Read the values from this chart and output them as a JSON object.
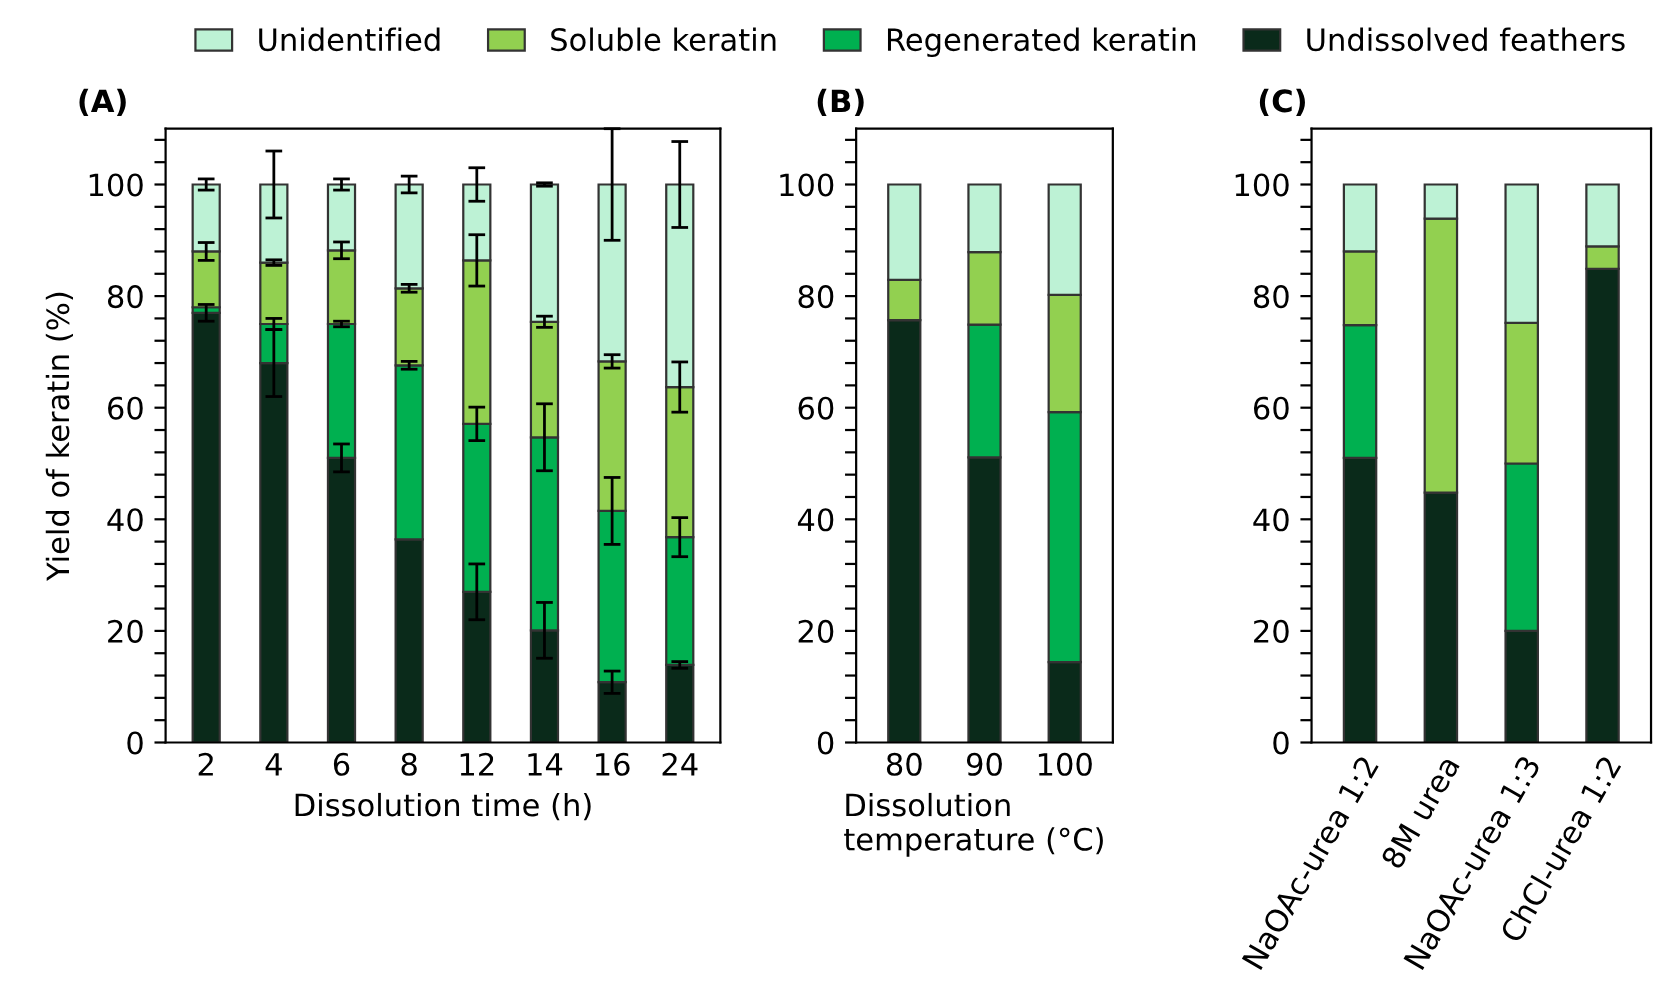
{
  "chart_data": [
    {
      "type": "bar",
      "stacked": true,
      "title": "(A)",
      "xlabel": "Dissolution time (h)",
      "ylabel": "Yield of keratin (%)",
      "legend": "top",
      "categories": [
        "2",
        "4",
        "6",
        "8",
        "12",
        "14",
        "16",
        "24"
      ],
      "ylim": [
        0,
        110
      ],
      "yticks": [
        0,
        {
          "value": 4,
          "label": null
        },
        {
          "value": 8,
          "label": null
        },
        {
          "value": 12,
          "label": null
        },
        {
          "value": 16,
          "label": null
        },
        20,
        {
          "value": 24,
          "label": null
        },
        {
          "value": 28,
          "label": null
        },
        {
          "value": 32,
          "label": null
        },
        {
          "value": 36,
          "label": null
        },
        40,
        {
          "value": 44,
          "label": null
        },
        {
          "value": 48,
          "label": null
        },
        {
          "value": 52,
          "label": null
        },
        {
          "value": 56,
          "label": null
        },
        60,
        {
          "value": 64,
          "label": null
        },
        {
          "value": 68,
          "label": null
        },
        {
          "value": 72,
          "label": null
        },
        {
          "value": 76,
          "label": null
        },
        80,
        {
          "value": 84,
          "label": null
        },
        {
          "value": 88,
          "label": null
        },
        {
          "value": 92,
          "label": null
        },
        {
          "value": 96,
          "label": null
        },
        100,
        {
          "value": 104,
          "label": null
        },
        {
          "value": 108,
          "label": null
        }
      ],
      "series": [
        {
          "name": "Undissolved feathers",
          "color": "#0a2a1a",
          "values": [
            77,
            68,
            51,
            36.4,
            27,
            20.1,
            10.8,
            13.9
          ],
          "errors": [
            1.5,
            6,
            2.5,
            null,
            5,
            5,
            2,
            0.6
          ]
        },
        {
          "name": "Regenerated keratin",
          "color": "#00b050",
          "values": [
            1,
            7,
            24,
            31.2,
            30.1,
            34.6,
            30.7,
            22.9
          ],
          "errors": [
            null,
            1,
            0.5,
            0.7,
            3,
            6,
            6,
            3.5
          ]
        },
        {
          "name": "Soluble keratin",
          "color": "#92d050",
          "values": [
            10,
            11,
            13.2,
            13.8,
            29.3,
            20.7,
            26.8,
            26.9
          ],
          "errors": [
            1.6,
            0.5,
            1.5,
            0.7,
            4.6,
            1,
            1.2,
            4.5
          ]
        },
        {
          "name": "Unidentified",
          "color": "#bdf2d5",
          "values": [
            12,
            14,
            11.8,
            18.6,
            13.6,
            24.6,
            31.7,
            36.3
          ],
          "errors": [
            1,
            6,
            1,
            1.5,
            3,
            0.3,
            10,
            7.7
          ]
        }
      ]
    },
    {
      "type": "bar",
      "stacked": true,
      "title": "(B)",
      "xlabel": "Dissolution\ntemperature (°C)",
      "categories": [
        "80",
        "90",
        "100"
      ],
      "ylim": [
        0,
        110
      ],
      "yticks": [
        0,
        {
          "value": 4,
          "label": null
        },
        {
          "value": 8,
          "label": null
        },
        {
          "value": 12,
          "label": null
        },
        {
          "value": 16,
          "label": null
        },
        20,
        {
          "value": 24,
          "label": null
        },
        {
          "value": 28,
          "label": null
        },
        {
          "value": 32,
          "label": null
        },
        {
          "value": 36,
          "label": null
        },
        40,
        {
          "value": 44,
          "label": null
        },
        {
          "value": 48,
          "label": null
        },
        {
          "value": 52,
          "label": null
        },
        {
          "value": 56,
          "label": null
        },
        60,
        {
          "value": 64,
          "label": null
        },
        {
          "value": 68,
          "label": null
        },
        {
          "value": 72,
          "label": null
        },
        {
          "value": 76,
          "label": null
        },
        80,
        {
          "value": 84,
          "label": null
        },
        {
          "value": 88,
          "label": null
        },
        {
          "value": 92,
          "label": null
        },
        {
          "value": 96,
          "label": null
        },
        100,
        {
          "value": 104,
          "label": null
        },
        {
          "value": 108,
          "label": null
        }
      ],
      "series": [
        {
          "color": "#0a2a1a",
          "values": [
            75.7,
            51.1,
            14.4
          ]
        },
        {
          "color": "#00b050",
          "values": [
            0,
            23.8,
            44.8
          ]
        },
        {
          "color": "#92d050",
          "values": [
            7.2,
            13,
            21
          ]
        },
        {
          "color": "#bdf2d5",
          "values": [
            17.1,
            12.1,
            19.8
          ]
        }
      ]
    },
    {
      "type": "bar",
      "stacked": true,
      "title": "(C)",
      "categories": [
        "NaOAc-urea 1:2",
        "8M urea",
        "NaOAc-urea 1:3",
        "ChCl-urea 1:2"
      ],
      "ylim": [
        0,
        110
      ],
      "yticks": [
        0,
        {
          "value": 4,
          "label": null
        },
        {
          "value": 8,
          "label": null
        },
        {
          "value": 12,
          "label": null
        },
        {
          "value": 16,
          "label": null
        },
        20,
        {
          "value": 24,
          "label": null
        },
        {
          "value": 28,
          "label": null
        },
        {
          "value": 32,
          "label": null
        },
        {
          "value": 36,
          "label": null
        },
        40,
        {
          "value": 44,
          "label": null
        },
        {
          "value": 48,
          "label": null
        },
        {
          "value": 52,
          "label": null
        },
        {
          "value": 56,
          "label": null
        },
        60,
        {
          "value": 64,
          "label": null
        },
        {
          "value": 68,
          "label": null
        },
        {
          "value": 72,
          "label": null
        },
        {
          "value": 76,
          "label": null
        },
        80,
        {
          "value": 84,
          "label": null
        },
        {
          "value": 88,
          "label": null
        },
        {
          "value": 92,
          "label": null
        },
        {
          "value": 96,
          "label": null
        },
        100,
        {
          "value": 104,
          "label": null
        },
        {
          "value": 108,
          "label": null
        }
      ],
      "series": [
        {
          "color": "#0a2a1a",
          "values": [
            51,
            44.8,
            20,
            84.9
          ]
        },
        {
          "color": "#00b050",
          "values": [
            23.8,
            0,
            30,
            0
          ]
        },
        {
          "color": "#92d050",
          "values": [
            13.2,
            49.1,
            25.2,
            4
          ]
        },
        {
          "color": "#bdf2d5",
          "values": [
            12,
            6.1,
            24.8,
            11.1
          ]
        }
      ]
    }
  ]
}
